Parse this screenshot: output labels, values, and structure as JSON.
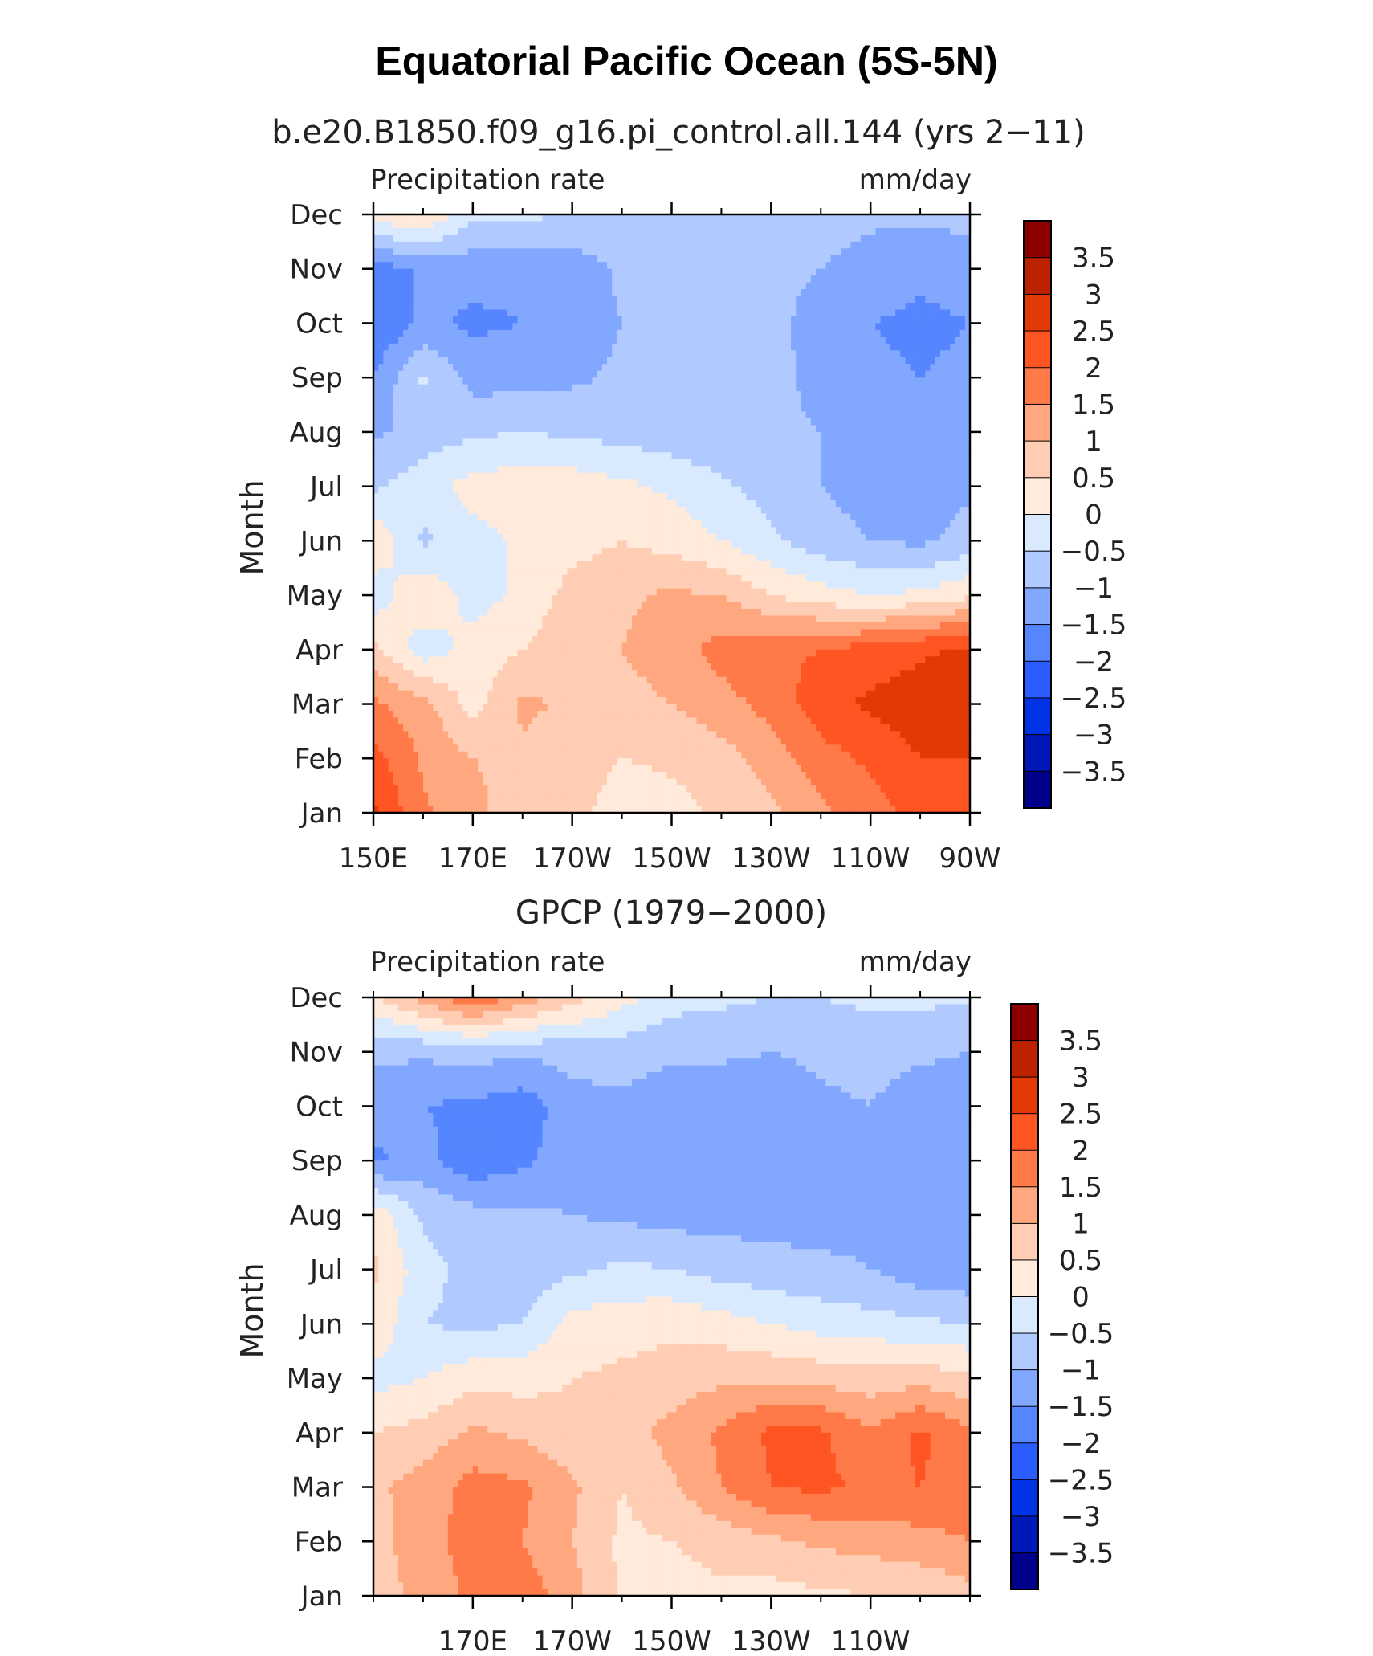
{
  "title": "Equatorial Pacific Ocean (5S-5N)",
  "chart_data": [
    {
      "type": "heatmap",
      "title": "b.e20.B1850.f09_g16.pi_control.all.144 (yrs 2−11)",
      "left_label": "Precipitation rate",
      "right_label": "mm/day",
      "xlabel": "",
      "ylabel": "Month",
      "x_tick_labels": [
        "150E",
        "170E",
        "170W",
        "150W",
        "130W",
        "110W",
        "90W"
      ],
      "x_tick_lon": [
        150,
        170,
        190,
        210,
        230,
        250,
        270
      ],
      "xlim": [
        150,
        270
      ],
      "y_tick_labels": [
        "Jan",
        "Feb",
        "Mar",
        "Apr",
        "May",
        "Jun",
        "Jul",
        "Aug",
        "Sep",
        "Oct",
        "Nov",
        "Dec"
      ],
      "x_lon": [
        150,
        160,
        170,
        180,
        190,
        200,
        210,
        220,
        230,
        240,
        250,
        260,
        270
      ],
      "z": [
        [
          2.6,
          1.6,
          1.1,
          0.8,
          0.7,
          0.2,
          0.3,
          0.6,
          0.9,
          1.4,
          1.8,
          2.2,
          2.4
        ],
        [
          2.2,
          1.4,
          1.0,
          0.9,
          0.8,
          0.5,
          0.6,
          0.8,
          1.2,
          1.8,
          2.1,
          2.5,
          2.5
        ],
        [
          1.6,
          1.2,
          0.3,
          1.1,
          0.9,
          0.8,
          1.0,
          1.3,
          1.7,
          2.3,
          2.6,
          2.8,
          3.0
        ],
        [
          0.6,
          -0.3,
          0.2,
          0.5,
          0.9,
          1.0,
          1.3,
          1.7,
          1.9,
          2.0,
          2.2,
          2.4,
          2.6
        ],
        [
          -0.3,
          0.4,
          -0.2,
          0.1,
          0.7,
          0.9,
          1.1,
          1.0,
          0.5,
          0.2,
          0.0,
          0.1,
          0.4
        ],
        [
          0.4,
          -0.6,
          -0.2,
          0.1,
          0.3,
          0.5,
          0.3,
          0.0,
          -0.4,
          -0.8,
          -1.0,
          -1.1,
          -0.8
        ],
        [
          -0.6,
          -0.2,
          0.2,
          0.3,
          0.3,
          0.1,
          -0.1,
          -0.4,
          -0.7,
          -1.0,
          -1.2,
          -1.2,
          -1.1
        ],
        [
          -1.1,
          -0.8,
          -0.6,
          -0.5,
          -0.6,
          -0.7,
          -0.8,
          -0.9,
          -0.9,
          -1.0,
          -1.1,
          -1.2,
          -1.2
        ],
        [
          -1.5,
          -0.4,
          -1.2,
          -1.2,
          -1.1,
          -0.9,
          -0.9,
          -0.8,
          -0.8,
          -1.2,
          -1.4,
          -1.5,
          -1.4
        ],
        [
          -2.0,
          -1.4,
          -1.6,
          -1.5,
          -1.3,
          -1.0,
          -0.8,
          -0.8,
          -0.8,
          -1.3,
          -1.5,
          -1.6,
          -1.5
        ],
        [
          -1.8,
          -1.4,
          -1.3,
          -1.4,
          -1.3,
          -0.9,
          -0.8,
          -0.8,
          -0.8,
          -1.0,
          -1.2,
          -1.4,
          -1.3
        ],
        [
          0.3,
          0.5,
          -0.4,
          -0.4,
          -0.5,
          -0.6,
          -0.6,
          -0.7,
          -0.7,
          -0.8,
          -0.9,
          -0.9,
          -0.8
        ]
      ],
      "colorbar_ticks": [
        "3.5",
        "3",
        "2.5",
        "2",
        "1.5",
        "1",
        "0.5",
        "0",
        "−0.5",
        "−1",
        "−1.5",
        "−2",
        "−2.5",
        "−3",
        "−3.5"
      ],
      "levels": [
        -3.5,
        -3,
        -2.5,
        -2,
        -1.5,
        -1,
        -0.5,
        0,
        0.5,
        1,
        1.5,
        2,
        2.5,
        3,
        3.5
      ],
      "colors": [
        "#00008b",
        "#0018b8",
        "#0033e6",
        "#2b5cff",
        "#5585ff",
        "#82a7ff",
        "#b0c9ff",
        "#d9eaff",
        "#ffeadb",
        "#ffcdb4",
        "#ffa880",
        "#ff7a48",
        "#ff5522",
        "#e33a05",
        "#bc2200",
        "#8c0000"
      ]
    },
    {
      "type": "heatmap",
      "title": "GPCP (1979−2000)",
      "left_label": "Precipitation rate",
      "right_label": "mm/day",
      "xlabel": "",
      "ylabel": "Month",
      "x_tick_labels": [
        "170E",
        "170W",
        "150W",
        "130W",
        "110W"
      ],
      "x_tick_lon": [
        170,
        190,
        210,
        230,
        250
      ],
      "xlim": [
        150,
        270
      ],
      "y_tick_labels": [
        "Jan",
        "Feb",
        "Mar",
        "Apr",
        "May",
        "Jun",
        "Jul",
        "Aug",
        "Sep",
        "Oct",
        "Nov",
        "Dec"
      ],
      "x_lon": [
        150,
        160,
        170,
        180,
        190,
        200,
        210,
        220,
        230,
        240,
        250,
        260,
        270
      ],
      "z": [
        [
          0.7,
          1.2,
          1.6,
          1.8,
          1.2,
          0.4,
          0.3,
          0.4,
          0.3,
          0.4,
          0.5,
          0.6,
          0.8
        ],
        [
          0.8,
          1.3,
          1.7,
          1.5,
          1.0,
          0.4,
          0.5,
          0.7,
          0.9,
          1.1,
          1.2,
          1.3,
          1.5
        ],
        [
          0.9,
          1.2,
          1.7,
          1.6,
          1.1,
          0.5,
          0.9,
          1.5,
          2.0,
          2.1,
          1.9,
          2.0,
          1.8
        ],
        [
          0.5,
          0.7,
          1.1,
          0.9,
          0.6,
          0.7,
          1.2,
          1.6,
          2.1,
          2.1,
          1.6,
          2.1,
          1.6
        ],
        [
          -0.2,
          0.0,
          0.3,
          0.3,
          0.5,
          0.6,
          0.7,
          0.9,
          0.9,
          0.8,
          0.7,
          0.8,
          0.6
        ],
        [
          0.4,
          -0.5,
          -0.6,
          -0.5,
          0.2,
          0.3,
          0.4,
          0.2,
          0.0,
          -0.2,
          -0.3,
          -0.4,
          -0.5
        ],
        [
          0.6,
          -0.3,
          -0.7,
          -0.8,
          -0.6,
          -0.4,
          -0.5,
          -0.7,
          -0.8,
          -0.9,
          -1.0,
          -1.3,
          -1.4
        ],
        [
          0.4,
          -0.6,
          -0.8,
          -0.9,
          -1.0,
          -1.1,
          -1.2,
          -1.2,
          -1.2,
          -1.2,
          -1.1,
          -1.4,
          -1.5
        ],
        [
          -1.6,
          -1.3,
          -1.9,
          -1.6,
          -1.2,
          -1.1,
          -1.3,
          -1.5,
          -1.5,
          -1.4,
          -1.1,
          -1.2,
          -1.3
        ],
        [
          -1.3,
          -1.5,
          -1.6,
          -1.8,
          -1.2,
          -1.1,
          -1.3,
          -1.4,
          -1.3,
          -1.1,
          -1.0,
          -1.3,
          -1.4
        ],
        [
          -0.9,
          -0.9,
          -0.8,
          -0.9,
          -0.8,
          -0.8,
          -0.9,
          -0.9,
          -1.0,
          -0.9,
          -0.8,
          -0.9,
          -1.0
        ],
        [
          0.4,
          1.2,
          2.0,
          1.3,
          0.7,
          0.2,
          -0.3,
          -0.4,
          -0.5,
          -0.5,
          -0.4,
          -0.4,
          -0.4
        ]
      ],
      "colorbar_ticks": [
        "3.5",
        "3",
        "2.5",
        "2",
        "1.5",
        "1",
        "0.5",
        "0",
        "−0.5",
        "−1",
        "−1.5",
        "−2",
        "−2.5",
        "−3",
        "−3.5"
      ],
      "levels": [
        -3.5,
        -3,
        -2.5,
        -2,
        -1.5,
        -1,
        -0.5,
        0,
        0.5,
        1,
        1.5,
        2,
        2.5,
        3,
        3.5
      ],
      "colors": [
        "#00008b",
        "#0018b8",
        "#0033e6",
        "#2b5cff",
        "#5585ff",
        "#82a7ff",
        "#b0c9ff",
        "#d9eaff",
        "#ffeadb",
        "#ffcdb4",
        "#ffa880",
        "#ff7a48",
        "#ff5522",
        "#e33a05",
        "#bc2200",
        "#8c0000"
      ]
    }
  ]
}
